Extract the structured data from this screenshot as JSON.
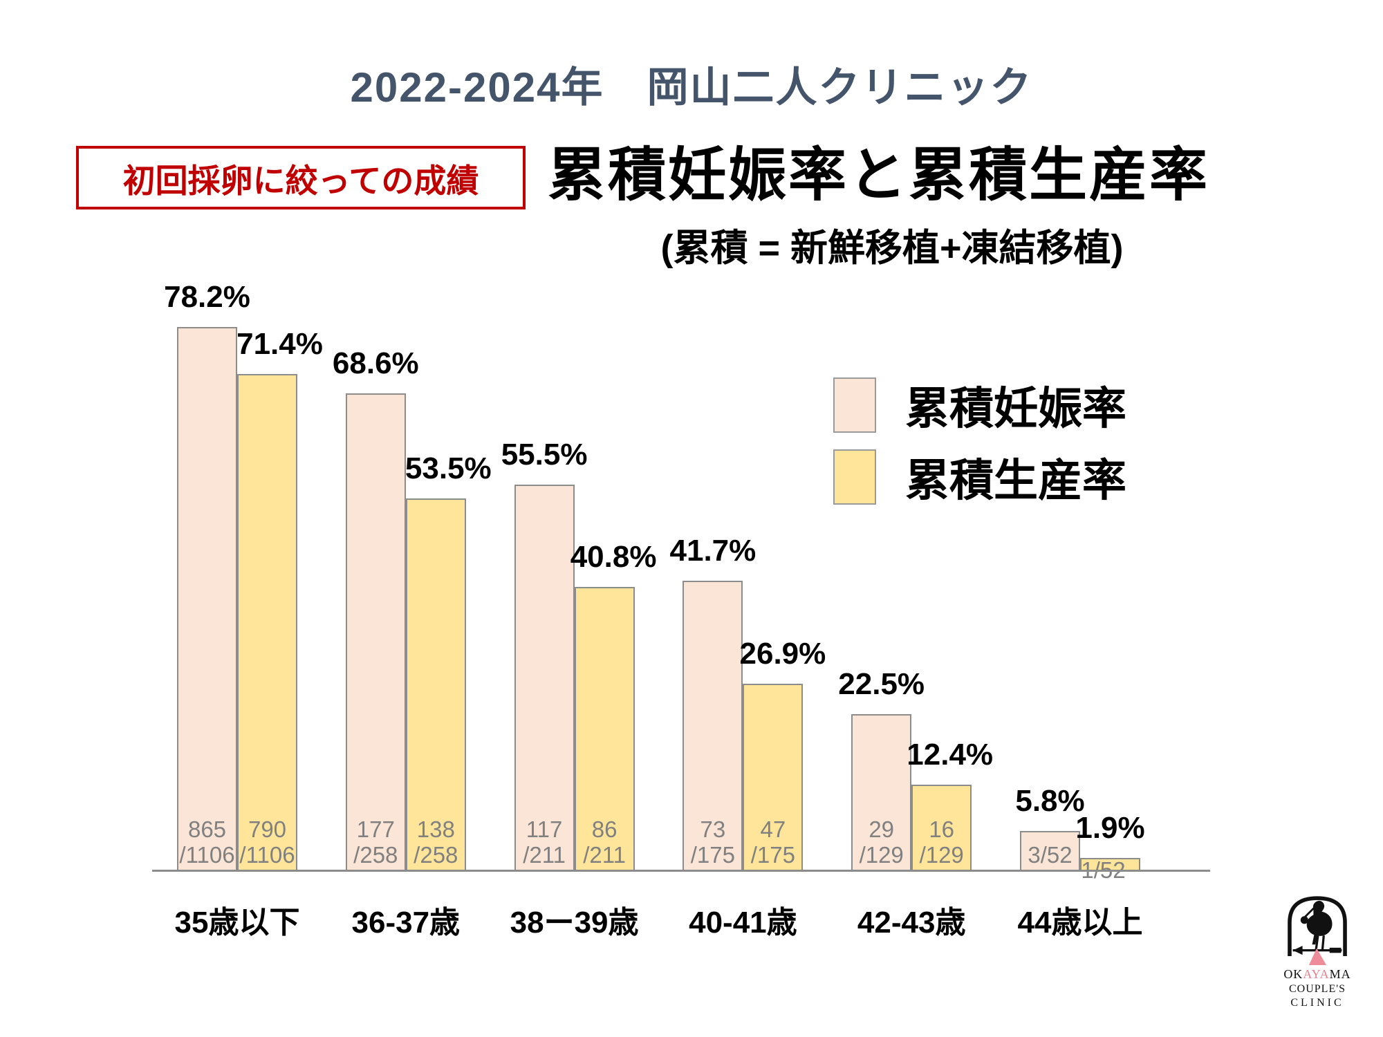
{
  "header": {
    "title": "2022-2024年　岡山二人クリニック"
  },
  "badge": {
    "text": "初回採卵に絞っての成績"
  },
  "titles": {
    "main": "累積妊娠率と累積生産率",
    "subtitle": "(累積 = 新鮮移植+凍結移植)"
  },
  "legend": {
    "items": [
      {
        "label": "累積妊娠率",
        "color": "#FBE5D6"
      },
      {
        "label": "累積生産率",
        "color": "#FFE599"
      }
    ]
  },
  "chart_data": {
    "type": "bar",
    "categories": [
      "35歳以下",
      "36-37歳",
      "38ー39歳",
      "40-41歳",
      "42-43歳",
      "44歳以上"
    ],
    "series": [
      {
        "name": "累積妊娠率",
        "color": "#FBE5D6",
        "values": [
          78.2,
          68.6,
          55.5,
          41.7,
          22.5,
          5.8
        ],
        "value_labels": [
          "78.2%",
          "68.6%",
          "55.5%",
          "41.7%",
          "22.5%",
          "5.8%"
        ],
        "fraction_labels": [
          [
            "865",
            "/1106"
          ],
          [
            "177",
            "/258"
          ],
          [
            "117",
            "/211"
          ],
          [
            "73",
            "/175"
          ],
          [
            "29",
            "/129"
          ],
          [
            "3/52"
          ]
        ],
        "numerators": [
          865,
          177,
          117,
          73,
          29,
          3
        ]
      },
      {
        "name": "累積生産率",
        "color": "#FFE599",
        "values": [
          71.4,
          53.5,
          40.8,
          26.9,
          12.4,
          1.9
        ],
        "value_labels": [
          "71.4%",
          "53.5%",
          "40.8%",
          "26.9%",
          "12.4%",
          "1.9%"
        ],
        "fraction_labels": [
          [
            "790",
            "/1106"
          ],
          [
            "138",
            "/258"
          ],
          [
            "86",
            "/211"
          ],
          [
            "47",
            "/175"
          ],
          [
            "16",
            "/129"
          ],
          [
            "1/52"
          ]
        ],
        "numerators": [
          790,
          138,
          86,
          47,
          16,
          1
        ]
      }
    ],
    "denominators": [
      1106,
      258,
      211,
      175,
      129,
      52
    ],
    "unit": "%",
    "ylim": [
      0,
      100
    ],
    "grid": false,
    "legend_position": "right",
    "value_text_color": "#000000",
    "fraction_text_color": "#808080",
    "bar_border_color": "#8c8c8c"
  },
  "logo": {
    "ok": "OK",
    "aya": "AYA",
    "ma": "MA",
    "line2": "COUPLE'S",
    "line3": "CLINIC"
  }
}
